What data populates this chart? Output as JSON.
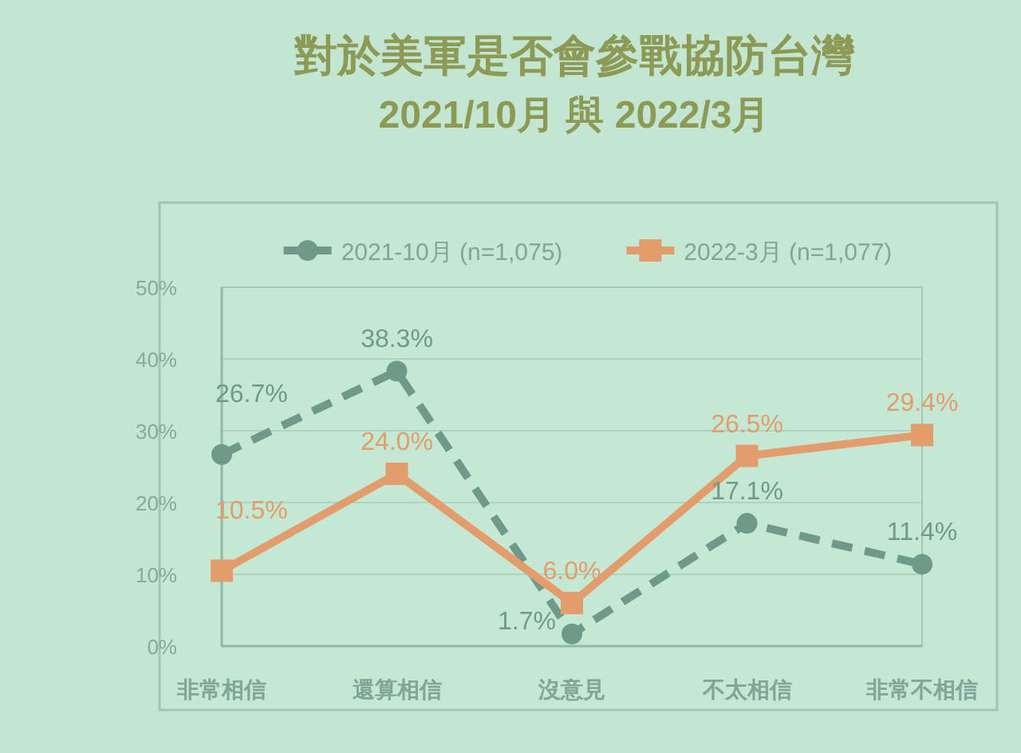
{
  "chart_data": {
    "type": "line",
    "title": "對於美軍是否會參戰協防台灣",
    "subtitle": "2021/10月 與 2022/3月",
    "categories": [
      "非常相信",
      "還算相信",
      "沒意見",
      "不太相信",
      "非常不相信"
    ],
    "series": [
      {
        "name": "2021-10月  (n=1,075)",
        "color": "#6f9a8a",
        "line_style": "dashed",
        "marker": "circle",
        "values": [
          26.7,
          38.3,
          1.7,
          17.1,
          11.4
        ],
        "value_labels": [
          "26.7%",
          "38.3%",
          "1.7%",
          "17.1%",
          "11.4%"
        ]
      },
      {
        "name": "2022-3月  (n=1,077)",
        "color": "#e39c6c",
        "line_style": "solid",
        "marker": "square",
        "values": [
          10.5,
          24.0,
          6.0,
          26.5,
          29.4
        ],
        "value_labels": [
          "10.5%",
          "24.0%",
          "6.0%",
          "26.5%",
          "29.4%"
        ]
      }
    ],
    "ylim": [
      0,
      50
    ],
    "yticks": [
      {
        "value": 0,
        "label": "0%"
      },
      {
        "value": 10,
        "label": "10%"
      },
      {
        "value": 20,
        "label": "20%"
      },
      {
        "value": 30,
        "label": "30%"
      },
      {
        "value": 40,
        "label": "40%"
      },
      {
        "value": 50,
        "label": "50%"
      }
    ],
    "grid": "y",
    "legend": "top"
  }
}
